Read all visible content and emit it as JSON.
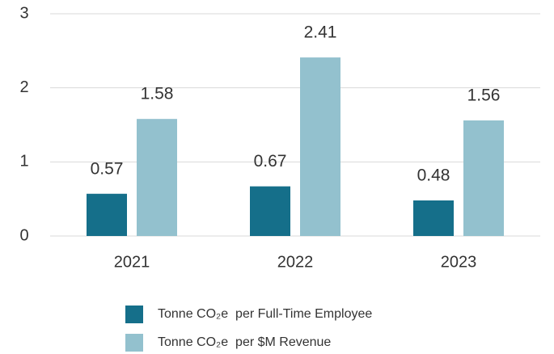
{
  "chart_data": {
    "type": "bar",
    "categories": [
      "2021",
      "2022",
      "2023"
    ],
    "series": [
      {
        "name": "Tonne CO₂e  per Full-Time Employee",
        "color": "#156f8a",
        "values": [
          0.57,
          0.67,
          0.48
        ]
      },
      {
        "name": "Tonne CO₂e  per $M Revenue",
        "color": "#93c1ce",
        "values": [
          1.58,
          2.41,
          1.56
        ]
      }
    ],
    "ylim": [
      0,
      3
    ],
    "yticks": [
      0,
      1,
      2,
      3
    ],
    "grid": true,
    "legend": "bottom"
  }
}
